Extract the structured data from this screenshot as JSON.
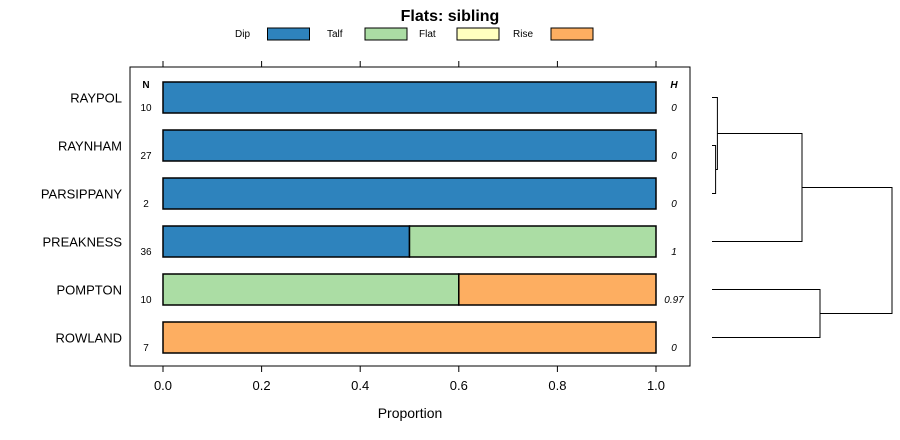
{
  "chart_data": {
    "type": "bar",
    "orientation": "horizontal",
    "stacked": true,
    "title": "Flats: sibling",
    "xlabel": "Proportion",
    "ylabel": "",
    "xlim": [
      -0.07,
      1.07
    ],
    "x_ticks": [
      0,
      0.2,
      0.4,
      0.6,
      0.8,
      1
    ],
    "x_tick_labels": [
      "0.0",
      "0.2",
      "0.4",
      "0.6",
      "0.8",
      "1.0"
    ],
    "legend_position": "top",
    "n_header": "N",
    "h_header": "H",
    "categories": [
      "RAYPOL",
      "RAYNHAM",
      "PARSIPPANY",
      "PREAKNESS",
      "POMPTON",
      "ROWLAND"
    ],
    "n_values": [
      "10",
      "27",
      "2",
      "36",
      "10",
      "7"
    ],
    "h_values": [
      "0",
      "0",
      "0",
      "1",
      "0.97",
      "0"
    ],
    "series": [
      {
        "name": "Dip",
        "color": "#2e83bd",
        "values": [
          1,
          1,
          1,
          0.5,
          0,
          0
        ]
      },
      {
        "name": "Talf",
        "color": "#abdda4",
        "values": [
          0,
          0,
          0,
          0.5,
          0.6,
          0
        ]
      },
      {
        "name": "Flat",
        "color": "#ffffbf",
        "values": [
          0,
          0,
          0,
          0,
          0,
          0
        ]
      },
      {
        "name": "Rise",
        "color": "#fdae61",
        "values": [
          0,
          0,
          0,
          0,
          0.4,
          1
        ]
      }
    ],
    "dendrogram": {
      "merges": [
        {
          "left": "RAYNHAM",
          "right": "PARSIPPANY",
          "height": 0.02
        },
        {
          "left": "RAYPOL",
          "right": "RAYNHAM+PARSIPPANY",
          "height": 0.03
        },
        {
          "left": "RAYPOL+RAYNHAM+PARSIPPANY",
          "right": "PREAKNESS",
          "height": 0.5
        },
        {
          "left": "POMPTON",
          "right": "ROWLAND",
          "height": 0.6
        },
        {
          "left": "RAYPOL+RAYNHAM+PARSIPPANY+PREAKNESS",
          "right": "POMPTON+ROWLAND",
          "height": 1.0
        }
      ]
    }
  }
}
